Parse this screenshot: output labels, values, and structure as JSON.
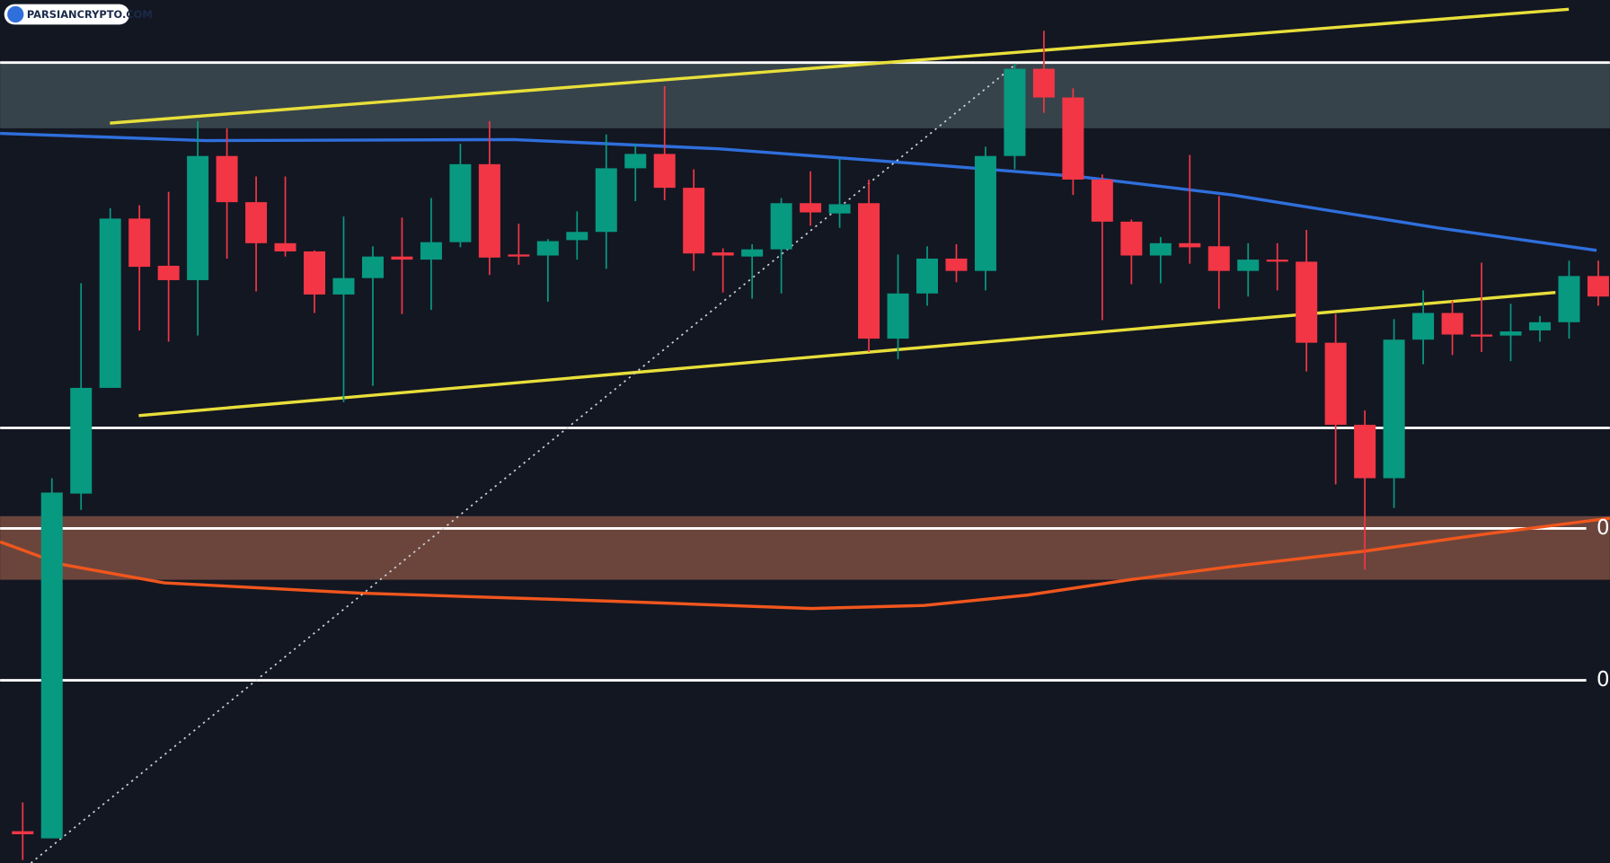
{
  "chart_data": {
    "type": "candlestick",
    "watermark": "PARSIANCRYPTO.COM",
    "ylim": [
      0,
      841
    ],
    "up_color": "#089981",
    "down_color": "#f23645",
    "open": [
      31,
      24,
      360,
      463,
      628,
      582,
      568,
      689,
      644,
      604,
      596,
      554,
      570,
      591,
      588,
      605,
      681,
      593,
      592,
      607,
      615,
      677,
      691,
      658,
      595,
      591,
      598,
      643,
      633,
      643,
      511,
      555,
      589,
      577,
      689,
      774,
      746,
      666,
      625,
      592,
      604,
      601,
      577,
      588,
      586,
      507,
      427,
      375,
      510,
      536,
      515,
      514,
      519,
      527,
      572
    ],
    "high": [
      59,
      375,
      565,
      638,
      641,
      654,
      723,
      716,
      669,
      669,
      597,
      630,
      601,
      629,
      648,
      701,
      723,
      623,
      608,
      635,
      710,
      701,
      757,
      676,
      599,
      603,
      648,
      674,
      686,
      666,
      593,
      601,
      603,
      698,
      779,
      811,
      755,
      671,
      627,
      610,
      690,
      650,
      604,
      604,
      617,
      535,
      441,
      530,
      558,
      548,
      585,
      545,
      533,
      587,
      587
    ],
    "low": [
      3,
      24,
      344,
      463,
      519,
      508,
      514,
      589,
      557,
      591,
      536,
      449,
      465,
      535,
      539,
      600,
      573,
      583,
      547,
      588,
      579,
      645,
      646,
      577,
      556,
      550,
      555,
      621,
      619,
      498,
      491,
      543,
      566,
      558,
      676,
      731,
      651,
      529,
      564,
      565,
      584,
      540,
      552,
      558,
      479,
      369,
      286,
      346,
      486,
      495,
      498,
      489,
      508,
      511,
      543
    ],
    "close": [
      28,
      361,
      463,
      628,
      581,
      568,
      689,
      644,
      604,
      596,
      554,
      570,
      591,
      588,
      605,
      681,
      590,
      591,
      606,
      615,
      677,
      691,
      658,
      594,
      592,
      598,
      643,
      634,
      642,
      511,
      555,
      589,
      577,
      689,
      774,
      746,
      666,
      625,
      592,
      604,
      600,
      577,
      588,
      586,
      507,
      427,
      375,
      510,
      536,
      515,
      513,
      518,
      527,
      572,
      552
    ],
    "levels": [
      780,
      424,
      326,
      178
    ],
    "level_labels": [
      "0",
      "0"
    ],
    "zones": [
      {
        "from": 716,
        "to": 780,
        "color": "#37434a"
      },
      {
        "from": 276,
        "to": 338,
        "color": "#6b453c"
      }
    ]
  }
}
